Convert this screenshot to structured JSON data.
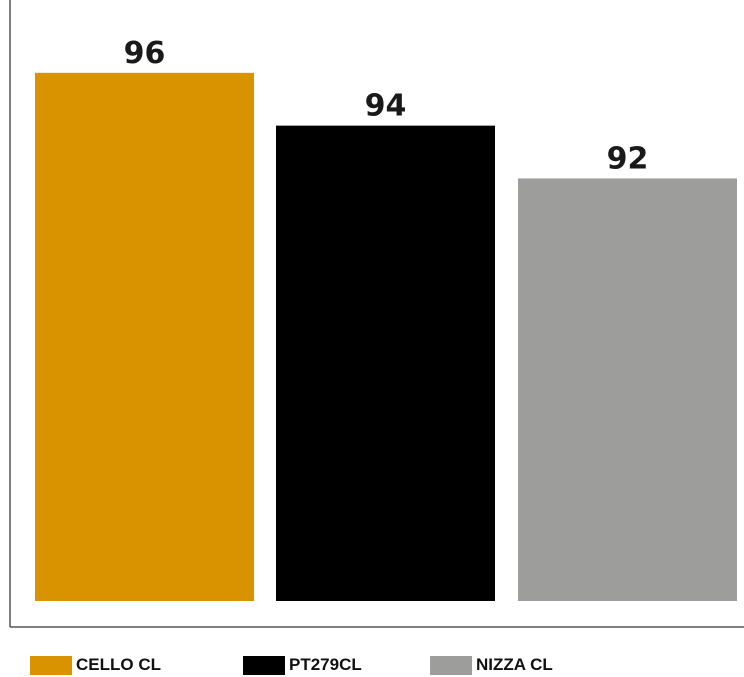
{
  "chart_data": {
    "type": "bar",
    "categories": [
      "CELLO CL",
      "PT279CL",
      "NIZZA CL"
    ],
    "values": [
      96,
      94,
      92
    ],
    "colors": [
      "#d99300",
      "#000000",
      "#9d9d9c"
    ],
    "value_labels": [
      "96",
      "94",
      "92"
    ],
    "title": "",
    "xlabel": "",
    "ylabel": "",
    "ylim": [
      76,
      98
    ],
    "grid": false,
    "legend_position": "bottom"
  },
  "legend": {
    "items": [
      {
        "label": "CELLO CL",
        "color": "#d99300"
      },
      {
        "label": "PT279CL",
        "color": "#000000"
      },
      {
        "label": "NIZZA CL",
        "color": "#9d9d9c"
      }
    ]
  }
}
